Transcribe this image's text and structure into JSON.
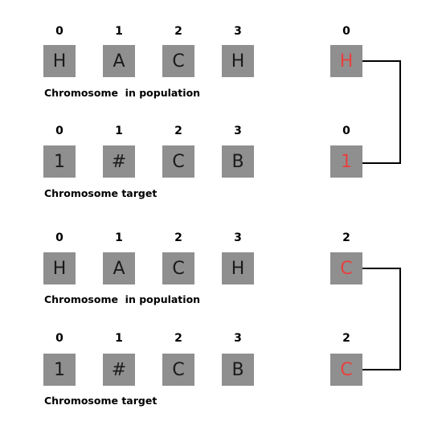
{
  "colors": {
    "box": "#8f8f8f",
    "highlight": "#e8413e",
    "connector": "#000000"
  },
  "groups": [
    {
      "population": {
        "indices": [
          "0",
          "1",
          "2",
          "3"
        ],
        "genes": [
          "H",
          "A",
          "C",
          "H"
        ],
        "caption": "Chromosome  in population"
      },
      "target": {
        "indices": [
          "0",
          "1",
          "2",
          "3"
        ],
        "genes": [
          "1",
          "#",
          "C",
          "B"
        ],
        "caption": "Chromosome target"
      },
      "comparison": {
        "population": {
          "index": "0",
          "gene": "H"
        },
        "target": {
          "index": "0",
          "gene": "1"
        }
      }
    },
    {
      "population": {
        "indices": [
          "0",
          "1",
          "2",
          "3"
        ],
        "genes": [
          "H",
          "A",
          "C",
          "H"
        ],
        "caption": "Chromosome  in population"
      },
      "target": {
        "indices": [
          "0",
          "1",
          "2",
          "3"
        ],
        "genes": [
          "1",
          "#",
          "C",
          "B"
        ],
        "caption": "Chromosome target"
      },
      "comparison": {
        "population": {
          "index": "2",
          "gene": "C"
        },
        "target": {
          "index": "2",
          "gene": "C"
        }
      }
    }
  ]
}
